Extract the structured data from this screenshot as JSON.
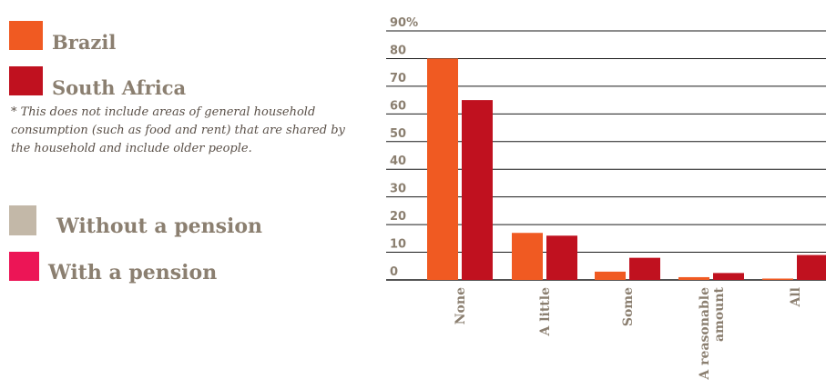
{
  "legend": {
    "brazil": {
      "label": "Brazil",
      "color": "#f05a22"
    },
    "south_africa": {
      "label": "South Africa",
      "color": "#c0111f"
    },
    "without_pension": {
      "label": "Without a pension",
      "color": "#c3b8a8"
    },
    "with_pension": {
      "label": "With a pension",
      "color": "#ec1556"
    }
  },
  "footnote": "* This does not include areas of general household consumption (such as food and rent) that are shared by the household and include older people.",
  "chart_data": {
    "type": "bar",
    "categories": [
      "None",
      "A little",
      "Some",
      "A reasonable amount",
      "All"
    ],
    "series": [
      {
        "name": "Brazil",
        "color": "#f05a22",
        "values": [
          80,
          17,
          3,
          1,
          0.5
        ]
      },
      {
        "name": "South Africa",
        "color": "#c0111f",
        "values": [
          65,
          16,
          8,
          2.5,
          9
        ]
      }
    ],
    "y_ticks": [
      "0",
      "10",
      "20",
      "30",
      "40",
      "50",
      "60",
      "70",
      "80",
      "90%"
    ],
    "ylim": [
      0,
      90
    ],
    "grid": true
  }
}
